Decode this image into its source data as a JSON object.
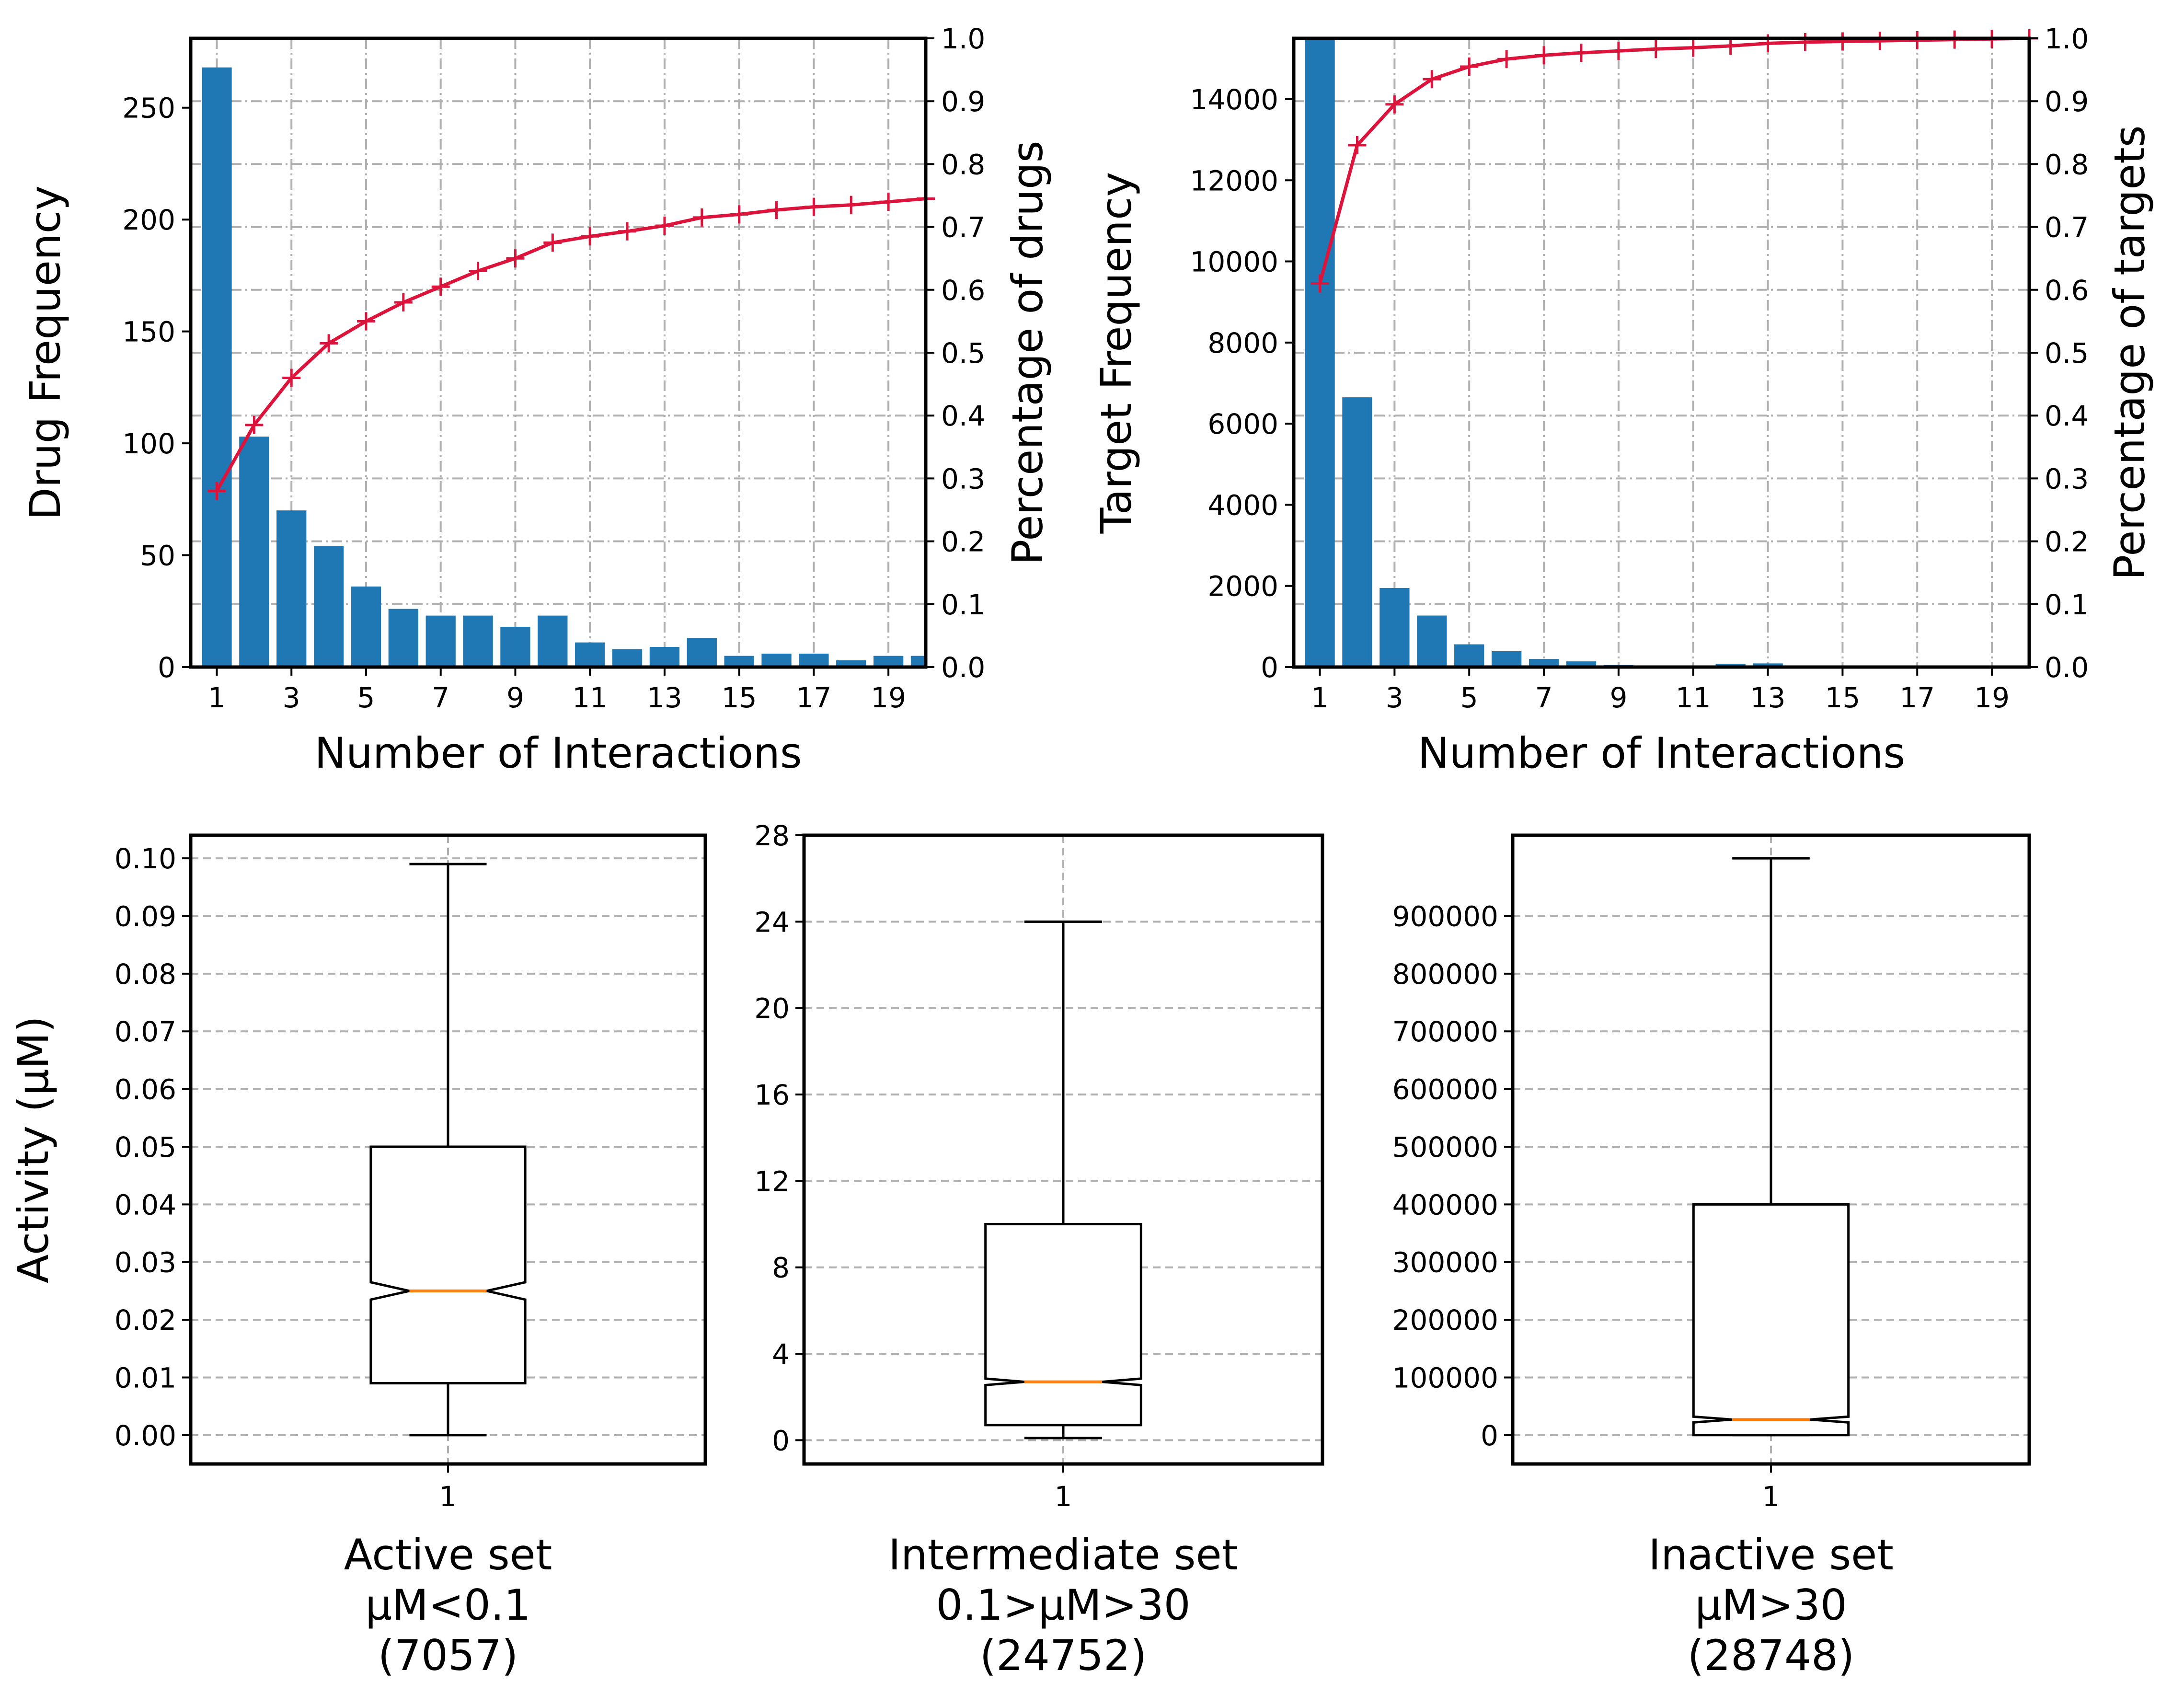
{
  "colors": {
    "bar": "#1f77b4",
    "cumulative_line": "#dc143c",
    "median": "#ff7f0e",
    "grid": "#b0b0b0",
    "axes": "#000000"
  },
  "chart_data": [
    {
      "id": "drug-hist",
      "type": "bar",
      "xlabel": "Number of Interactions",
      "ylabel": "Drug Frequency",
      "y2label": "Percentage of drugs",
      "x": [
        1,
        2,
        3,
        4,
        5,
        6,
        7,
        8,
        9,
        10,
        11,
        12,
        13,
        14,
        15,
        16,
        17,
        18,
        19,
        20
      ],
      "values": [
        268,
        103,
        70,
        54,
        36,
        26,
        23,
        23,
        18,
        23,
        11,
        8,
        9,
        13,
        5,
        6,
        6,
        3,
        5,
        5
      ],
      "cumulative": [
        0.28,
        0.385,
        0.46,
        0.515,
        0.55,
        0.58,
        0.605,
        0.63,
        0.65,
        0.675,
        0.685,
        0.693,
        0.702,
        0.715,
        0.72,
        0.727,
        0.732,
        0.735,
        0.74,
        0.745
      ],
      "xlim": [
        0.3,
        20
      ],
      "ylim": [
        0,
        281
      ],
      "y2lim": [
        0,
        1
      ],
      "xticks": [
        1,
        3,
        5,
        7,
        9,
        11,
        13,
        15,
        17,
        19
      ],
      "yticks": [
        0,
        50,
        100,
        150,
        200,
        250
      ],
      "y2ticks": [
        0.0,
        0.1,
        0.2,
        0.3,
        0.4,
        0.5,
        0.6,
        0.7,
        0.8,
        0.9,
        1.0
      ],
      "grid": true
    },
    {
      "id": "target-hist",
      "type": "bar",
      "xlabel": "Number of Interactions",
      "ylabel": "Target Frequency",
      "y2label": "Percentage of targets",
      "x": [
        1,
        2,
        3,
        4,
        5,
        6,
        7,
        8,
        9,
        10,
        11,
        12,
        13,
        14,
        15,
        16,
        17,
        18,
        19,
        20
      ],
      "values": [
        15600,
        6650,
        1950,
        1270,
        560,
        390,
        200,
        140,
        50,
        40,
        30,
        80,
        90,
        15,
        10,
        10,
        8,
        8,
        5,
        5
      ],
      "cumulative": [
        0.61,
        0.83,
        0.895,
        0.935,
        0.955,
        0.967,
        0.973,
        0.977,
        0.98,
        0.983,
        0.985,
        0.988,
        0.992,
        0.994,
        0.995,
        0.996,
        0.997,
        0.998,
        0.999,
        1.0
      ],
      "xlim": [
        0.3,
        20
      ],
      "ylim": [
        0,
        15500
      ],
      "y2lim": [
        0,
        1
      ],
      "xticks": [
        1,
        3,
        5,
        7,
        9,
        11,
        13,
        15,
        17,
        19
      ],
      "yticks": [
        0,
        2000,
        4000,
        6000,
        8000,
        10000,
        12000,
        14000
      ],
      "y2ticks": [
        0.0,
        0.1,
        0.2,
        0.3,
        0.4,
        0.5,
        0.6,
        0.7,
        0.8,
        0.9,
        1.0
      ],
      "grid": true
    },
    {
      "id": "box-active",
      "type": "box",
      "category": "1",
      "title_lines": [
        "Active set",
        "μM<0.1",
        "(7057)"
      ],
      "ylabel": "Activity (μM)",
      "whisker_low": 0.0,
      "q1": 0.009,
      "median": 0.025,
      "q3": 0.05,
      "whisker_high": 0.099,
      "notch_low": 0.0235,
      "notch_high": 0.0265,
      "ylim": [
        -0.005,
        0.104
      ],
      "yticks": [
        "0.00",
        "0.01",
        "0.02",
        "0.03",
        "0.04",
        "0.05",
        "0.06",
        "0.07",
        "0.08",
        "0.09",
        "0.10"
      ],
      "grid": true
    },
    {
      "id": "box-intermediate",
      "type": "box",
      "category": "1",
      "title_lines": [
        "Intermediate set",
        "0.1>μM>30",
        "(24752)"
      ],
      "ylabel": "",
      "whisker_low": 0.1,
      "q1": 0.7,
      "median": 2.7,
      "q3": 10.0,
      "whisker_high": 24.0,
      "notch_low": 2.55,
      "notch_high": 2.85,
      "ylim": [
        -1.1,
        28
      ],
      "yticks": [
        "0",
        "4",
        "8",
        "12",
        "16",
        "20",
        "24",
        "28"
      ],
      "grid": true
    },
    {
      "id": "box-inactive",
      "type": "box",
      "category": "1",
      "title_lines": [
        "Inactive set",
        "μM>30",
        "(28748)"
      ],
      "ylabel": "",
      "whisker_low": 30,
      "q1": 30,
      "median": 27000,
      "q3": 400000,
      "whisker_high": 1000000,
      "notch_low": 22000,
      "notch_high": 32000,
      "ylim": [
        -50000,
        1040000
      ],
      "yticks": [
        "0",
        "100000",
        "200000",
        "300000",
        "400000",
        "500000",
        "600000",
        "700000",
        "800000",
        "900000"
      ],
      "grid": true
    }
  ]
}
